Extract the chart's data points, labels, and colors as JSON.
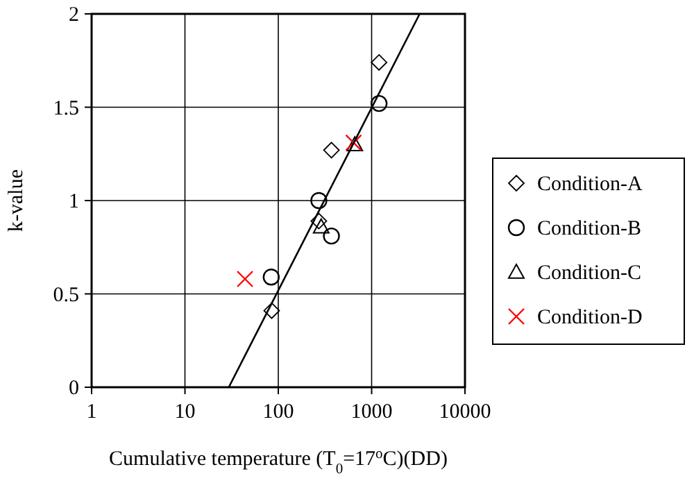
{
  "chart_data": {
    "type": "scatter",
    "xlabel": "Cumulative temperature (T$_{0}$=17$^{o}$C)(DD)",
    "ylabel": "k-value",
    "log": "x",
    "xlim": [
      1,
      10000
    ],
    "xticks": [
      1,
      10,
      100,
      1000,
      10000
    ],
    "ylim": [
      0,
      2
    ],
    "yticks": [
      0,
      0.5,
      1,
      1.5,
      2
    ],
    "grid": true,
    "legend": "right",
    "series": [
      {
        "name": "Condition-A",
        "color": "#000000",
        "marker": "diamond",
        "x": [
          85,
          272,
          371,
          1200
        ],
        "values": [
          0.41,
          0.89,
          1.27,
          1.74
        ]
      },
      {
        "name": "Condition-B",
        "color": "#000000",
        "marker": "circle",
        "x": [
          84,
          272,
          371,
          1200
        ],
        "values": [
          0.59,
          1.0,
          0.81,
          1.52
        ]
      },
      {
        "name": "Condition-C",
        "color": "#000000",
        "marker": "triangle",
        "x": [
          288,
          660
        ],
        "values": [
          0.86,
          1.3
        ]
      },
      {
        "name": "Condition-D",
        "color": "#ff0000",
        "marker": "cross",
        "x": [
          44,
          641
        ],
        "values": [
          0.58,
          1.31
        ]
      },
      {
        "type": "line",
        "color": "#000000",
        "x": [
          29.5,
          3270
        ],
        "values": [
          0,
          2
        ]
      }
    ]
  }
}
